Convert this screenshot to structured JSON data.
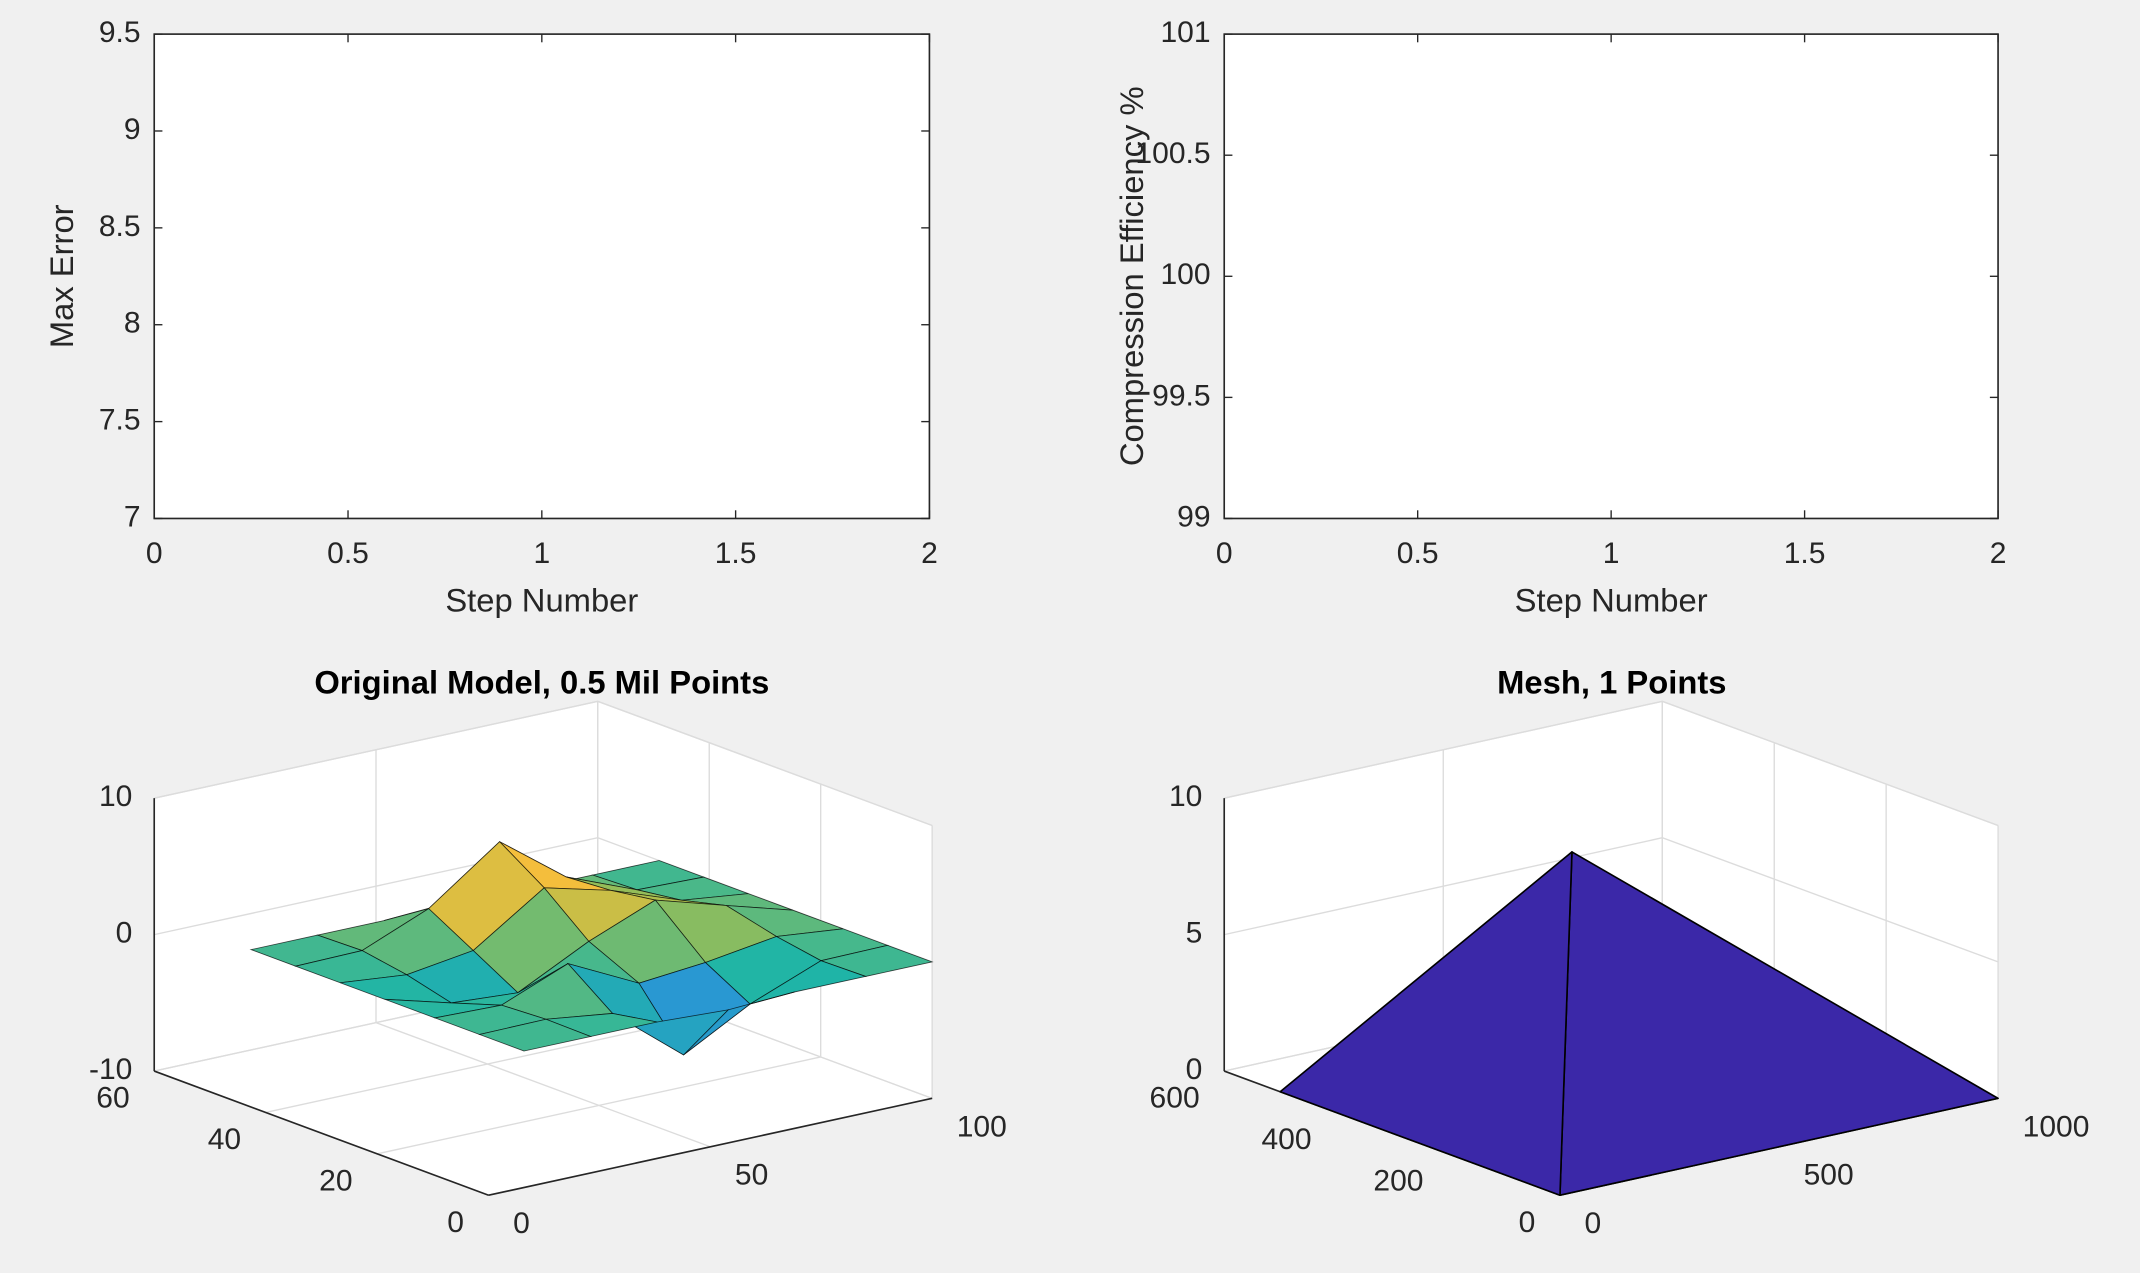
{
  "chart_data": [
    {
      "type": "line",
      "ylabel": "Max Error",
      "xlabel": "Step Number",
      "xlim": [
        0,
        2
      ],
      "xticks": [
        0,
        0.5,
        1,
        1.5,
        2
      ],
      "ylim": [
        7,
        9.5
      ],
      "yticks": [
        7,
        7.5,
        8,
        8.5,
        9,
        9.5
      ],
      "grid": false
    },
    {
      "type": "line",
      "ylabel": "Compression Efficiency %",
      "xlabel": "Step Number",
      "xlim": [
        0,
        2
      ],
      "xticks": [
        0,
        0.5,
        1,
        1.5,
        2
      ],
      "ylim": [
        99,
        101
      ],
      "yticks": [
        99,
        99.5,
        100,
        100.5,
        101
      ],
      "grid": false
    },
    {
      "type": "surface",
      "title": "Original Model, 0.5 Mil Points",
      "x": [
        8,
        23,
        38,
        54,
        69,
        85,
        100
      ],
      "y": [
        0,
        8,
        16,
        25,
        33,
        41,
        49
      ],
      "z": [
        [
          0,
          0,
          0,
          -0.25,
          0,
          0,
          0
        ],
        [
          0,
          0.05,
          -0.59,
          -4.76,
          -2.1,
          -0.06,
          0
        ],
        [
          0,
          -0.13,
          1.85,
          -0.72,
          -0.27,
          0.5,
          0
        ],
        [
          0,
          -1.33,
          -1.65,
          0.98,
          2.94,
          1.41,
          0
        ],
        [
          0,
          -0.48,
          0.23,
          3.69,
          2.44,
          0.58,
          0
        ],
        [
          0,
          0.08,
          2.09,
          5.86,
          2.21,
          0.13,
          0
        ],
        [
          0,
          0,
          0,
          0.3,
          0,
          0,
          0
        ]
      ],
      "xlim": [
        0,
        100
      ],
      "xticks": [
        0,
        50,
        100
      ],
      "ylim": [
        0,
        60
      ],
      "yticks": [
        0,
        20,
        40,
        60
      ],
      "zlim": [
        -10,
        10
      ],
      "zticks": [
        -10,
        0,
        10
      ],
      "colormap": [
        "#3e26a8",
        "#2d8ae6",
        "#1fb5a6",
        "#a5be4e",
        "#fcbe3a",
        "#f9fb15"
      ],
      "edgecolor": "#000000",
      "grid": true
    },
    {
      "type": "trisurf",
      "title": "Mesh, 1 Points",
      "x": [
        0,
        0,
        1000,
        500
      ],
      "y": [
        0,
        500,
        0,
        370
      ],
      "z": [
        0,
        0,
        0,
        8
      ],
      "faces": [
        [
          0,
          1,
          3
        ],
        [
          0,
          2,
          3
        ]
      ],
      "xlim": [
        0,
        1000
      ],
      "xticks": [
        0,
        500,
        1000
      ],
      "ylim": [
        0,
        600
      ],
      "yticks": [
        0,
        200,
        400,
        600
      ],
      "zlim": [
        0,
        10
      ],
      "zticks": [
        0,
        5,
        10
      ],
      "color": "#3b28a8",
      "edgecolor": "#000000",
      "grid": true
    }
  ]
}
